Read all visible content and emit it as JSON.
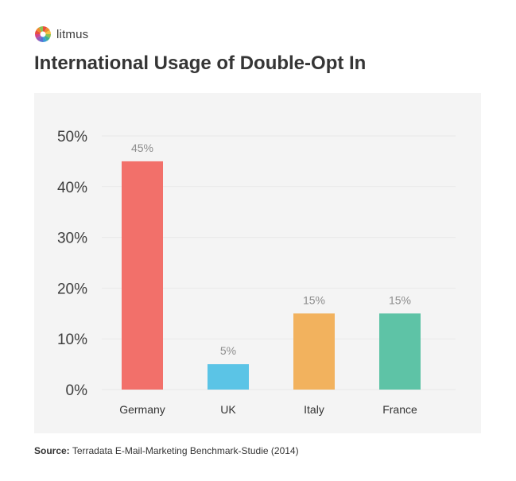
{
  "brand": {
    "name": "litmus",
    "logo_icon": "litmus-sunburst-icon"
  },
  "colors": {
    "panel_bg": "#f4f4f4",
    "germany": "#f2706a",
    "uk": "#5bc4e6",
    "italy": "#f2b25e",
    "france": "#5ec3a6"
  },
  "source": {
    "label": "Source:",
    "text": "Terradata E-Mail-Marketing Benchmark-Studie (2014)"
  },
  "chart_data": {
    "type": "bar",
    "title": "International Usage of Double-Opt In",
    "xlabel": "",
    "ylabel": "",
    "categories": [
      "Germany",
      "UK",
      "Italy",
      "France"
    ],
    "values": [
      45,
      5,
      15,
      15
    ],
    "data_labels": [
      "45%",
      "5%",
      "15%",
      "15%"
    ],
    "bar_colors": [
      "#f2706a",
      "#5bc4e6",
      "#f2b25e",
      "#5ec3a6"
    ],
    "ylim": [
      0,
      50
    ],
    "yticks": [
      0,
      10,
      20,
      30,
      40,
      50
    ],
    "ytick_labels": [
      "0%",
      "10%",
      "20%",
      "30%",
      "40%",
      "50%"
    ],
    "grid": true,
    "legend": "none"
  }
}
